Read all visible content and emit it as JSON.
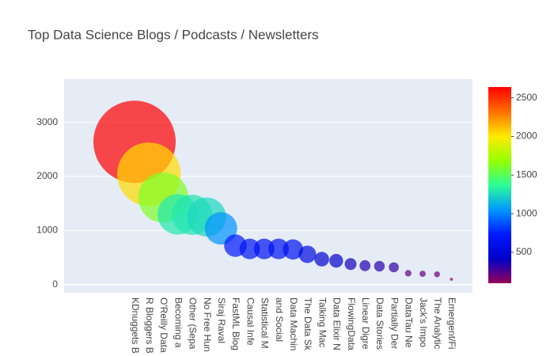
{
  "chart_data": {
    "type": "bubble",
    "title": "Top Data Science Blogs / Podcasts / Newsletters",
    "categories": [
      "KDnuggets B",
      "R Bloggers B",
      "O'Reilly Data",
      "Becoming a",
      "Other (Sepa",
      "No Free Hun",
      "Siraj Raval",
      "FastML Blog",
      "Causal Infe",
      "Statistical M",
      "and Social",
      "Data Machin",
      "The Data Sk",
      "Talking Mac",
      "Data Elixir N",
      "FlowingData",
      "Linear Digre",
      "Data Stories",
      "Partially Der",
      "DataTau Ne",
      "Jack's Impo",
      "The Analytic",
      "Emergent/Fi"
    ],
    "values": [
      2640,
      2040,
      1610,
      1300,
      1290,
      1250,
      1040,
      720,
      660,
      660,
      660,
      650,
      560,
      470,
      440,
      380,
      350,
      340,
      320,
      210,
      200,
      190,
      100
    ],
    "ylim": [
      -150,
      3800
    ],
    "yticks": [
      0,
      1000,
      2000,
      3000
    ],
    "grid": true,
    "colorscale": [
      "#96005a",
      "#0000c8",
      "#0019ff",
      "#0098ff",
      "#2cff96",
      "#97ff00",
      "#ffea00",
      "#ff6f00",
      "#ff0000"
    ],
    "colorbar_ticks": [
      500,
      1000,
      1500,
      2000,
      2500
    ]
  }
}
